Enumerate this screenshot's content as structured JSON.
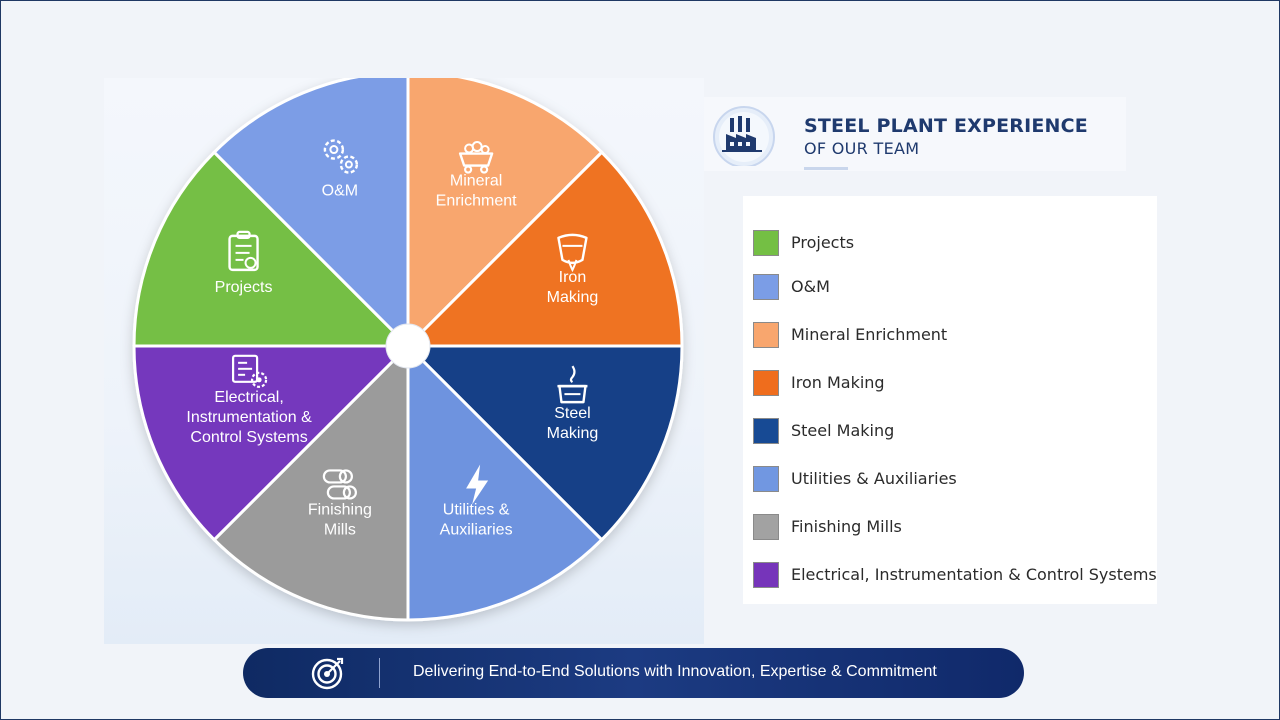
{
  "header": {
    "title": "STEEL PLANT EXPERIENCE",
    "subtitle": "OF OUR TEAM",
    "icon": "factory-icon"
  },
  "wheel": {
    "segments": [
      {
        "label_lines": [
          "Mineral",
          "Enrichment"
        ],
        "icon": "ore-cart-icon",
        "color": "#f8a66e"
      },
      {
        "label_lines": [
          "Iron",
          "Making"
        ],
        "icon": "ladle-icon",
        "color": "#ef7324"
      },
      {
        "label_lines": [
          "Steel",
          "Making"
        ],
        "icon": "furnace-icon",
        "color": "#123f87"
      },
      {
        "label_lines": [
          "Utilities &",
          "Auxiliaries"
        ],
        "icon": "lightning-icon",
        "color": "#6e93df"
      },
      {
        "label_lines": [
          "Finishing",
          "Mills"
        ],
        "icon": "coils-icon",
        "color": "#9b9b9b"
      },
      {
        "label_lines": [
          "Electrical,",
          "Instrumentation &",
          "Control Systems"
        ],
        "icon": "circuit-gear-icon",
        "color": "#7437bd"
      },
      {
        "label_lines": [
          "Projects"
        ],
        "icon": "clipboard-icon",
        "color": "#74bf44"
      },
      {
        "label_lines": [
          "O&M"
        ],
        "icon": "gears-icon",
        "color": "#7b9de6"
      }
    ]
  },
  "legend": {
    "items": [
      {
        "label": "Projects",
        "color": "#74bf44"
      },
      {
        "label": "O&M",
        "color": "#7b9de6"
      },
      {
        "label": "Mineral Enrichment",
        "color": "#f8a66e"
      },
      {
        "label": "Iron Making",
        "color": "#ef6d1d"
      },
      {
        "label": "Steel Making",
        "color": "#174a94"
      },
      {
        "label": "Utilities & Auxiliaries",
        "color": "#7197e1"
      },
      {
        "label": "Finishing Mills",
        "color": "#a2a2a2"
      },
      {
        "label": "Electrical, Instrumentation & Control Systems",
        "color": "#7634ba"
      }
    ]
  },
  "footer": {
    "text": "Delivering End-to-End Solutions with Innovation, Expertise & Commitment",
    "icon": "target-icon"
  }
}
